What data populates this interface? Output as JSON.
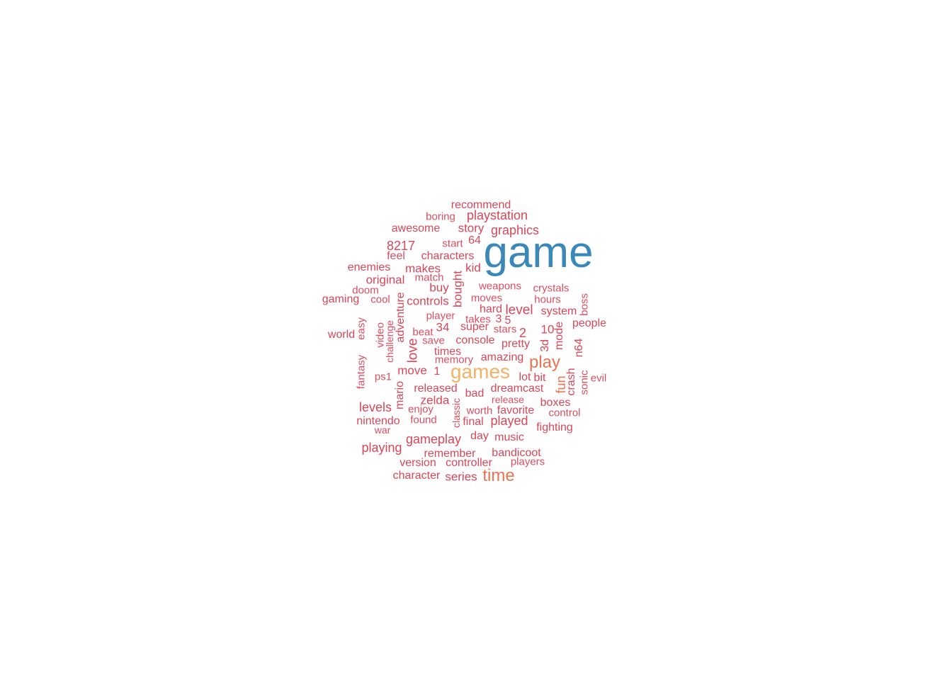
{
  "colors": {
    "xl": "#3a87b9",
    "lg": "#f5b066",
    "md": "#ec7350",
    "sm": "#d94658",
    "xs": "#dc4d60"
  },
  "words": [
    {
      "text": "game",
      "tier": "xl"
    },
    {
      "text": "games",
      "tier": "lg"
    },
    {
      "text": "play",
      "tier": "md"
    },
    {
      "text": "time",
      "tier": "md"
    },
    {
      "text": "fun",
      "tier": "md"
    },
    {
      "text": "recommend",
      "tier": "sm"
    },
    {
      "text": "playstation",
      "tier": "sm"
    },
    {
      "text": "boring",
      "tier": "xs"
    },
    {
      "text": "awesome",
      "tier": "sm"
    },
    {
      "text": "story",
      "tier": "sm"
    },
    {
      "text": "graphics",
      "tier": "sm"
    },
    {
      "text": "8217",
      "tier": "sm"
    },
    {
      "text": "start",
      "tier": "xs"
    },
    {
      "text": "64",
      "tier": "sm"
    },
    {
      "text": "feel",
      "tier": "xs"
    },
    {
      "text": "characters",
      "tier": "sm"
    },
    {
      "text": "enemies",
      "tier": "sm"
    },
    {
      "text": "makes",
      "tier": "sm"
    },
    {
      "text": "kid",
      "tier": "sm"
    },
    {
      "text": "original",
      "tier": "sm"
    },
    {
      "text": "match",
      "tier": "xs"
    },
    {
      "text": "bought",
      "tier": "sm"
    },
    {
      "text": "doom",
      "tier": "xs"
    },
    {
      "text": "buy",
      "tier": "sm"
    },
    {
      "text": "weapons",
      "tier": "xs"
    },
    {
      "text": "crystals",
      "tier": "xs"
    },
    {
      "text": "gaming",
      "tier": "sm"
    },
    {
      "text": "cool",
      "tier": "xs"
    },
    {
      "text": "adventure",
      "tier": "sm"
    },
    {
      "text": "controls",
      "tier": "sm"
    },
    {
      "text": "moves",
      "tier": "xs"
    },
    {
      "text": "hours",
      "tier": "xs"
    },
    {
      "text": "boss",
      "tier": "xs"
    },
    {
      "text": "hard",
      "tier": "sm"
    },
    {
      "text": "level",
      "tier": "sm"
    },
    {
      "text": "system",
      "tier": "sm"
    },
    {
      "text": "player",
      "tier": "xs"
    },
    {
      "text": "takes",
      "tier": "xs"
    },
    {
      "text": "3",
      "tier": "sm"
    },
    {
      "text": "5",
      "tier": "sm"
    },
    {
      "text": "easy",
      "tier": "xs"
    },
    {
      "text": "video",
      "tier": "xs"
    },
    {
      "text": "challenge",
      "tier": "xs"
    },
    {
      "text": "34",
      "tier": "sm"
    },
    {
      "text": "super",
      "tier": "sm"
    },
    {
      "text": "stars",
      "tier": "xs"
    },
    {
      "text": "2",
      "tier": "sm"
    },
    {
      "text": "10",
      "tier": "sm"
    },
    {
      "text": "mode",
      "tier": "sm"
    },
    {
      "text": "people",
      "tier": "sm"
    },
    {
      "text": "world",
      "tier": "sm"
    },
    {
      "text": "beat",
      "tier": "xs"
    },
    {
      "text": "save",
      "tier": "xs"
    },
    {
      "text": "console",
      "tier": "sm"
    },
    {
      "text": "pretty",
      "tier": "sm"
    },
    {
      "text": "3d",
      "tier": "sm"
    },
    {
      "text": "n64",
      "tier": "sm"
    },
    {
      "text": "love",
      "tier": "sm"
    },
    {
      "text": "times",
      "tier": "sm"
    },
    {
      "text": "memory",
      "tier": "xs"
    },
    {
      "text": "amazing",
      "tier": "sm"
    },
    {
      "text": "fantasy",
      "tier": "xs"
    },
    {
      "text": "ps1",
      "tier": "xs"
    },
    {
      "text": "move",
      "tier": "sm"
    },
    {
      "text": "1",
      "tier": "sm"
    },
    {
      "text": "lot",
      "tier": "sm"
    },
    {
      "text": "bit",
      "tier": "sm"
    },
    {
      "text": "crash",
      "tier": "sm"
    },
    {
      "text": "sonic",
      "tier": "xs"
    },
    {
      "text": "evil",
      "tier": "xs"
    },
    {
      "text": "mario",
      "tier": "sm"
    },
    {
      "text": "released",
      "tier": "sm"
    },
    {
      "text": "bad",
      "tier": "sm"
    },
    {
      "text": "dreamcast",
      "tier": "sm"
    },
    {
      "text": "release",
      "tier": "xs"
    },
    {
      "text": "zelda",
      "tier": "sm"
    },
    {
      "text": "boxes",
      "tier": "sm"
    },
    {
      "text": "levels",
      "tier": "sm"
    },
    {
      "text": "enjoy",
      "tier": "xs"
    },
    {
      "text": "classic",
      "tier": "xs"
    },
    {
      "text": "worth",
      "tier": "xs"
    },
    {
      "text": "favorite",
      "tier": "sm"
    },
    {
      "text": "control",
      "tier": "xs"
    },
    {
      "text": "nintendo",
      "tier": "sm"
    },
    {
      "text": "found",
      "tier": "xs"
    },
    {
      "text": "final",
      "tier": "sm"
    },
    {
      "text": "played",
      "tier": "sm"
    },
    {
      "text": "fighting",
      "tier": "sm"
    },
    {
      "text": "war",
      "tier": "xs"
    },
    {
      "text": "day",
      "tier": "sm"
    },
    {
      "text": "music",
      "tier": "sm"
    },
    {
      "text": "gameplay",
      "tier": "sm"
    },
    {
      "text": "playing",
      "tier": "sm"
    },
    {
      "text": "remember",
      "tier": "sm"
    },
    {
      "text": "bandicoot",
      "tier": "sm"
    },
    {
      "text": "version",
      "tier": "sm"
    },
    {
      "text": "controller",
      "tier": "sm"
    },
    {
      "text": "players",
      "tier": "xs"
    },
    {
      "text": "character",
      "tier": "sm"
    },
    {
      "text": "series",
      "tier": "sm"
    }
  ]
}
